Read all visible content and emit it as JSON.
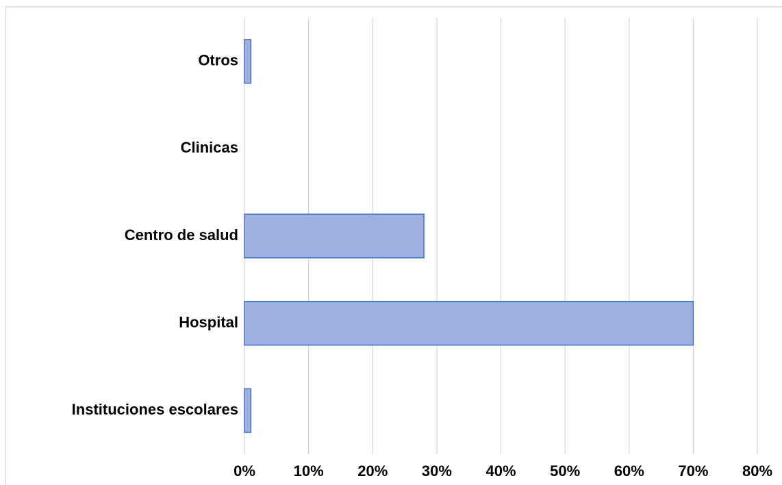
{
  "chart_data": {
    "type": "bar",
    "orientation": "horizontal",
    "categories": [
      "Otros",
      "Clinicas",
      "Centro de salud",
      "Hospital",
      "Instituciones escolares"
    ],
    "values": [
      1,
      0,
      28,
      70,
      1
    ],
    "color": "#9db0df",
    "xlim": [
      0,
      80
    ],
    "xticks": [
      {
        "value": 0,
        "label": "0%"
      },
      {
        "value": 10,
        "label": "10%"
      },
      {
        "value": 20,
        "label": "20%"
      },
      {
        "value": 30,
        "label": "30%"
      },
      {
        "value": 40,
        "label": "40%"
      },
      {
        "value": 50,
        "label": "50%"
      },
      {
        "value": 60,
        "label": "60%"
      },
      {
        "value": 70,
        "label": "70%"
      },
      {
        "value": 80,
        "label": "80%"
      }
    ],
    "grid": true
  }
}
